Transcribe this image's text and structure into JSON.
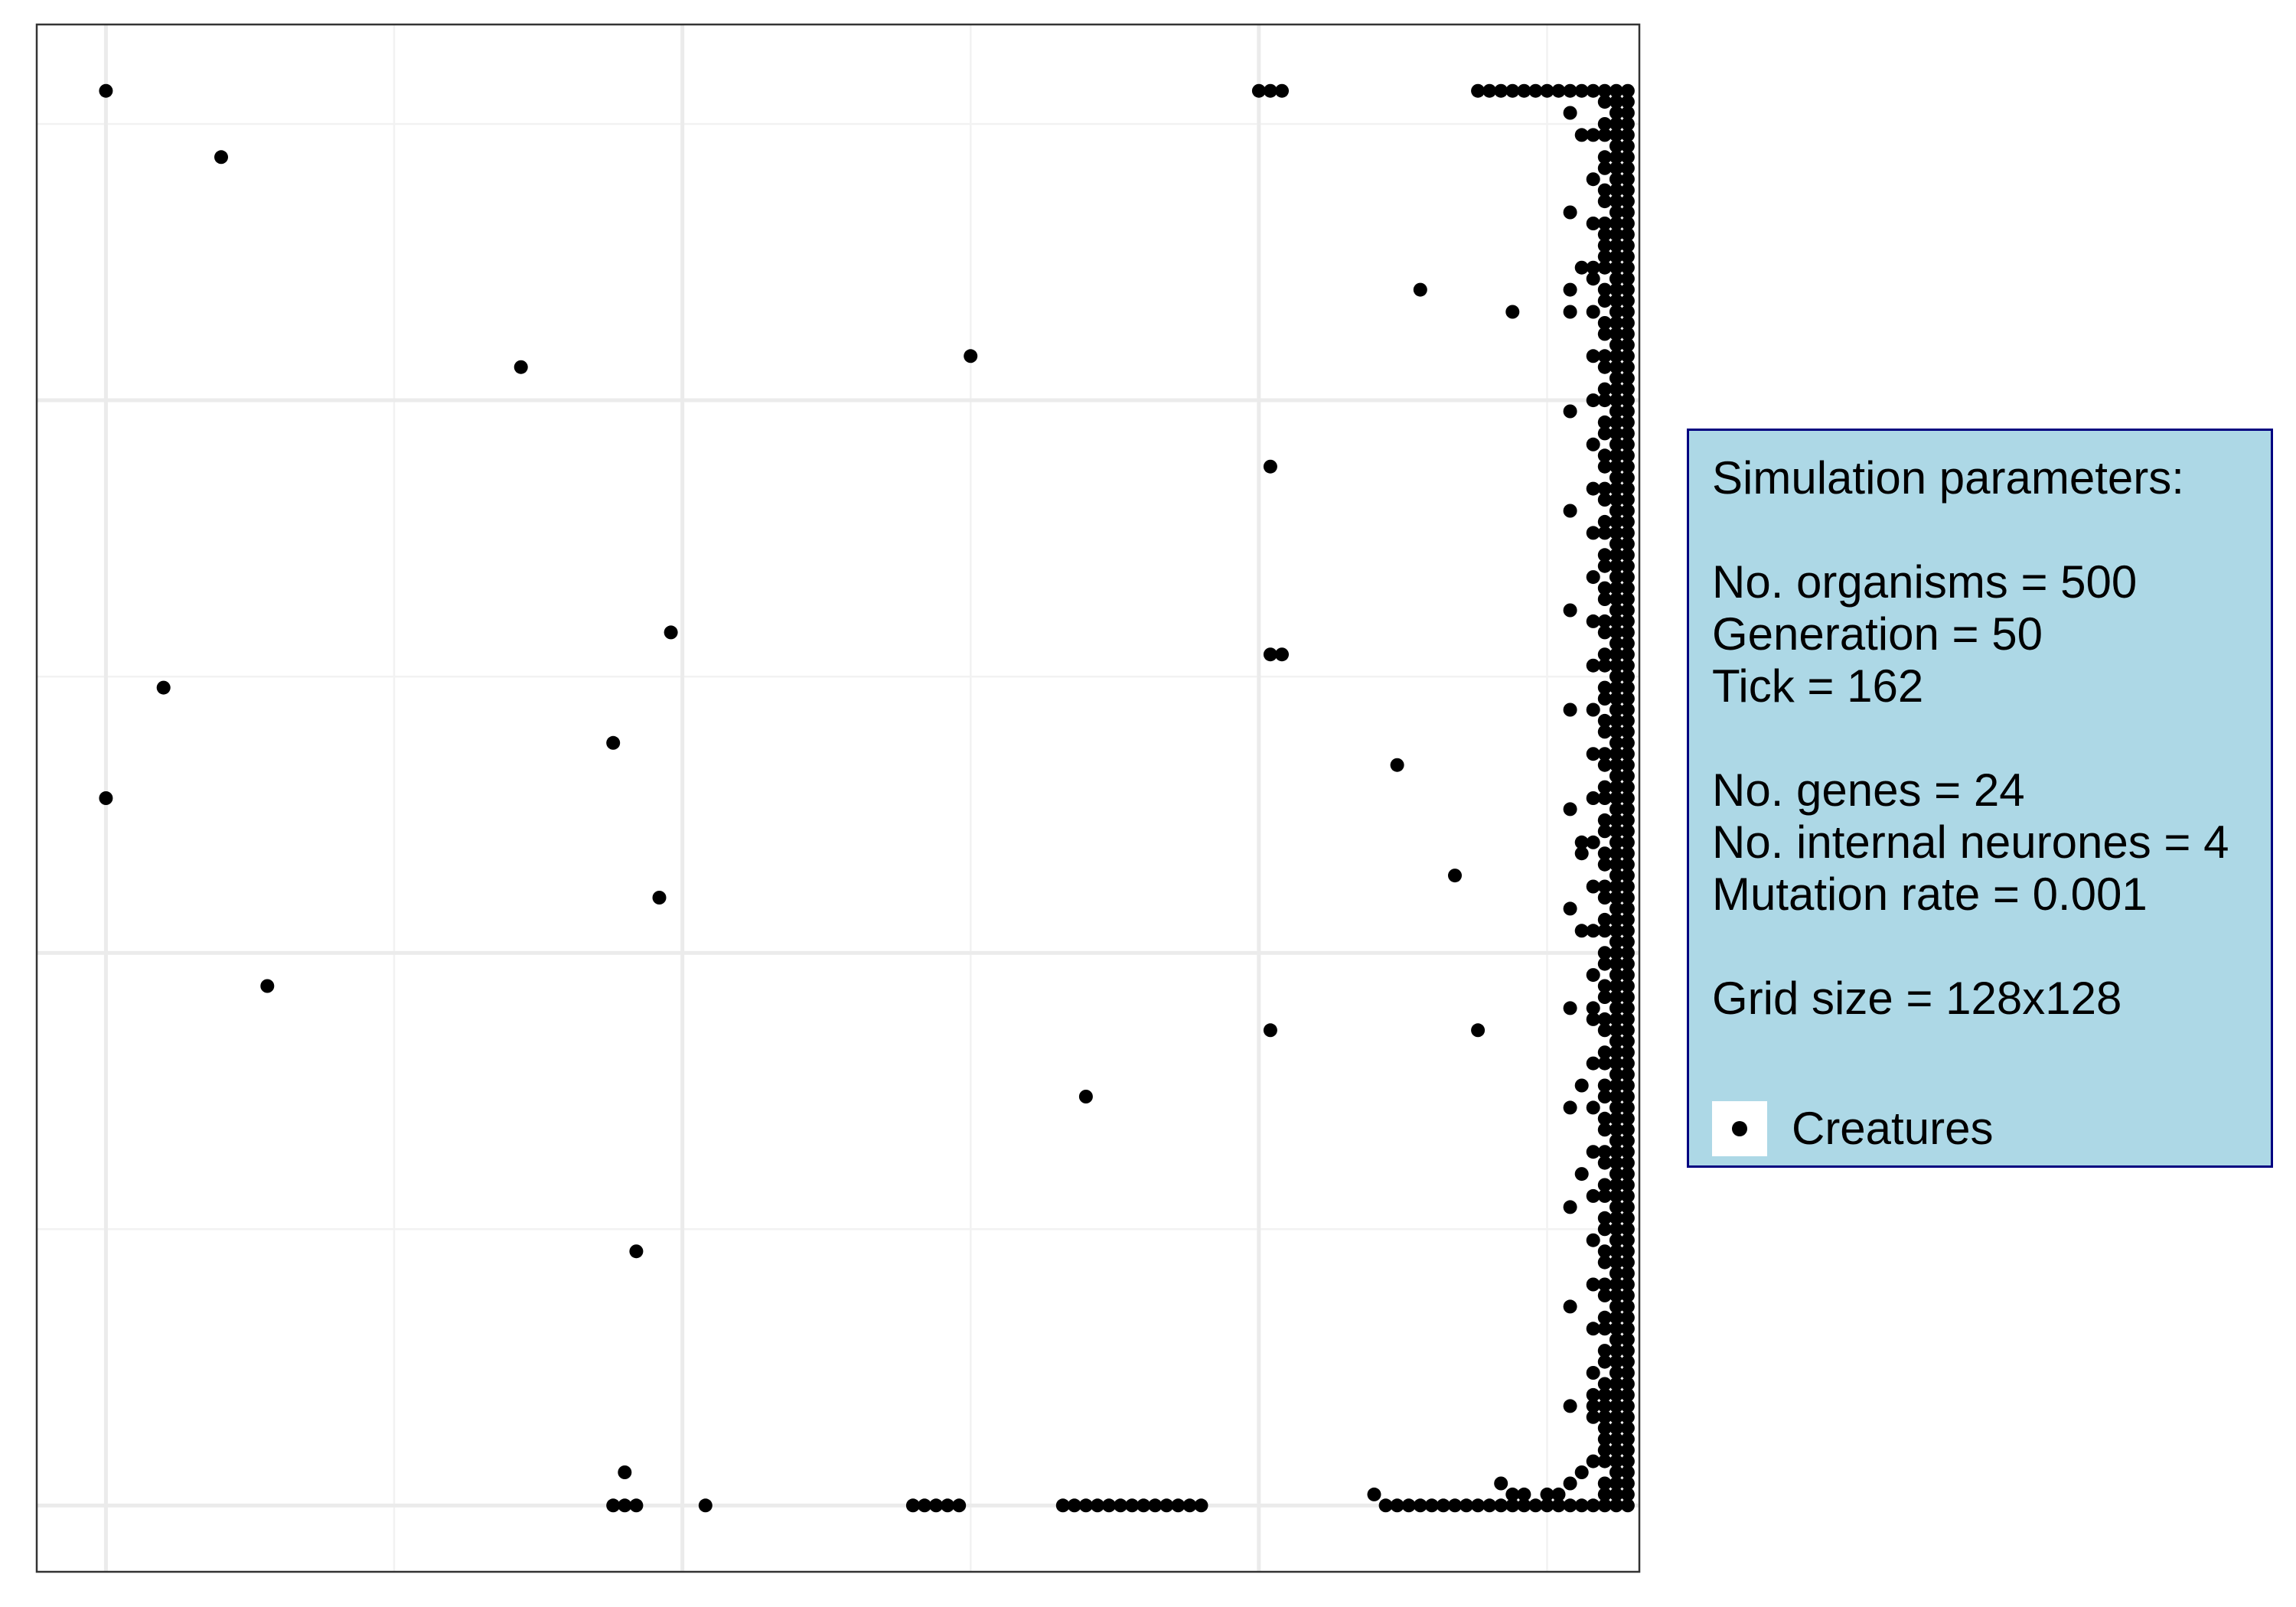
{
  "chart_data": {
    "type": "scatter",
    "title": "",
    "xlabel": "",
    "ylabel": "",
    "xlim": [
      -6,
      133
    ],
    "ylim": [
      -6,
      134
    ],
    "grid": true,
    "legend_placement": "right",
    "series": [
      {
        "name": "Creatures",
        "color": "#000000",
        "points": [
          [
            0,
            128
          ],
          [
            10,
            122
          ],
          [
            36,
            103
          ],
          [
            75,
            104
          ],
          [
            101,
            94
          ],
          [
            49,
            79
          ],
          [
            5,
            74
          ],
          [
            44,
            69
          ],
          [
            0,
            64
          ],
          [
            48,
            55
          ],
          [
            14,
            47
          ],
          [
            46,
            23
          ],
          [
            45,
            3
          ],
          [
            44,
            0
          ],
          [
            102,
            128
          ],
          [
            101,
            128
          ],
          [
            100,
            128
          ],
          [
            101,
            77
          ],
          [
            102,
            77
          ],
          [
            112,
            67
          ],
          [
            117,
            57
          ],
          [
            119,
            43
          ],
          [
            101,
            43
          ],
          [
            85,
            37
          ],
          [
            114,
            110
          ],
          [
            122,
            108
          ],
          [
            128,
            124
          ],
          [
            119,
            128
          ],
          [
            120,
            128
          ],
          [
            121,
            128
          ],
          [
            122,
            128
          ],
          [
            123,
            128
          ],
          [
            124,
            128
          ],
          [
            125,
            128
          ],
          [
            126,
            128
          ],
          [
            127,
            128
          ],
          [
            128,
            128
          ],
          [
            129,
            128
          ],
          [
            130,
            128
          ],
          [
            131,
            128
          ],
          [
            132,
            128
          ],
          [
            45,
            0
          ],
          [
            46,
            0
          ],
          [
            52,
            0
          ],
          [
            70,
            0
          ],
          [
            71,
            0
          ],
          [
            72,
            0
          ],
          [
            73,
            0
          ],
          [
            74,
            0
          ],
          [
            83,
            0
          ],
          [
            84,
            0
          ],
          [
            85,
            0
          ],
          [
            86,
            0
          ],
          [
            87,
            0
          ],
          [
            88,
            0
          ],
          [
            89,
            0
          ],
          [
            90,
            0
          ],
          [
            91,
            0
          ],
          [
            92,
            0
          ],
          [
            93,
            0
          ],
          [
            94,
            0
          ],
          [
            95,
            0
          ],
          [
            111,
            0
          ],
          [
            112,
            0
          ],
          [
            113,
            0
          ],
          [
            114,
            0
          ],
          [
            115,
            0
          ],
          [
            116,
            0
          ],
          [
            117,
            0
          ],
          [
            118,
            0
          ],
          [
            119,
            0
          ],
          [
            120,
            0
          ],
          [
            121,
            0
          ],
          [
            122,
            0
          ],
          [
            123,
            0
          ],
          [
            124,
            0
          ],
          [
            125,
            0
          ],
          [
            126,
            0
          ],
          [
            127,
            0
          ],
          [
            128,
            0
          ],
          [
            129,
            0
          ],
          [
            130,
            0
          ],
          [
            131,
            0
          ],
          [
            132,
            0
          ],
          [
            110,
            1
          ],
          [
            121,
            2
          ],
          [
            122,
            1
          ],
          [
            123,
            1
          ],
          [
            125,
            1
          ],
          [
            126,
            1
          ],
          [
            127,
            2
          ],
          [
            128,
            3
          ],
          [
            129,
            4
          ],
          [
            130,
            6
          ],
          [
            131,
            8
          ],
          [
            132,
            10
          ],
          [
            127,
            110
          ],
          [
            128,
            112
          ],
          [
            129,
            111
          ],
          [
            130,
            114
          ],
          [
            131,
            117
          ],
          [
            132,
            119
          ],
          [
            128,
            60
          ],
          [
            128,
            59
          ],
          [
            129,
            60
          ],
          [
            128,
            52
          ],
          [
            129,
            52
          ],
          [
            129,
            48
          ],
          [
            129,
            45
          ],
          [
            128,
            38
          ],
          [
            128,
            30
          ],
          [
            129,
            10
          ],
          [
            129,
            9
          ],
          [
            130,
            9
          ],
          [
            131,
            9
          ]
        ],
        "band_right": {
          "x_min": 128,
          "x_max": 132,
          "y_min": 0,
          "y_max": 128
        }
      }
    ]
  },
  "legend": {
    "title": "Simulation parameters:",
    "organisms": "No. organisms = 500",
    "generation": "Generation = 50",
    "tick": "Tick = 162",
    "genes": "No. genes = 24",
    "internal_neurones": "No. internal neurones = 4",
    "mutation_rate": "Mutation rate = 0.001",
    "grid_size": "Grid size = 128x128",
    "key_label": "Creatures"
  },
  "colors": {
    "panel_border": "#333333",
    "grid_major": "#ebebeb",
    "grid_minor": "#f2f2f2",
    "legend_bg": "#add8e6",
    "legend_border": "#000080",
    "point": "#000000"
  }
}
